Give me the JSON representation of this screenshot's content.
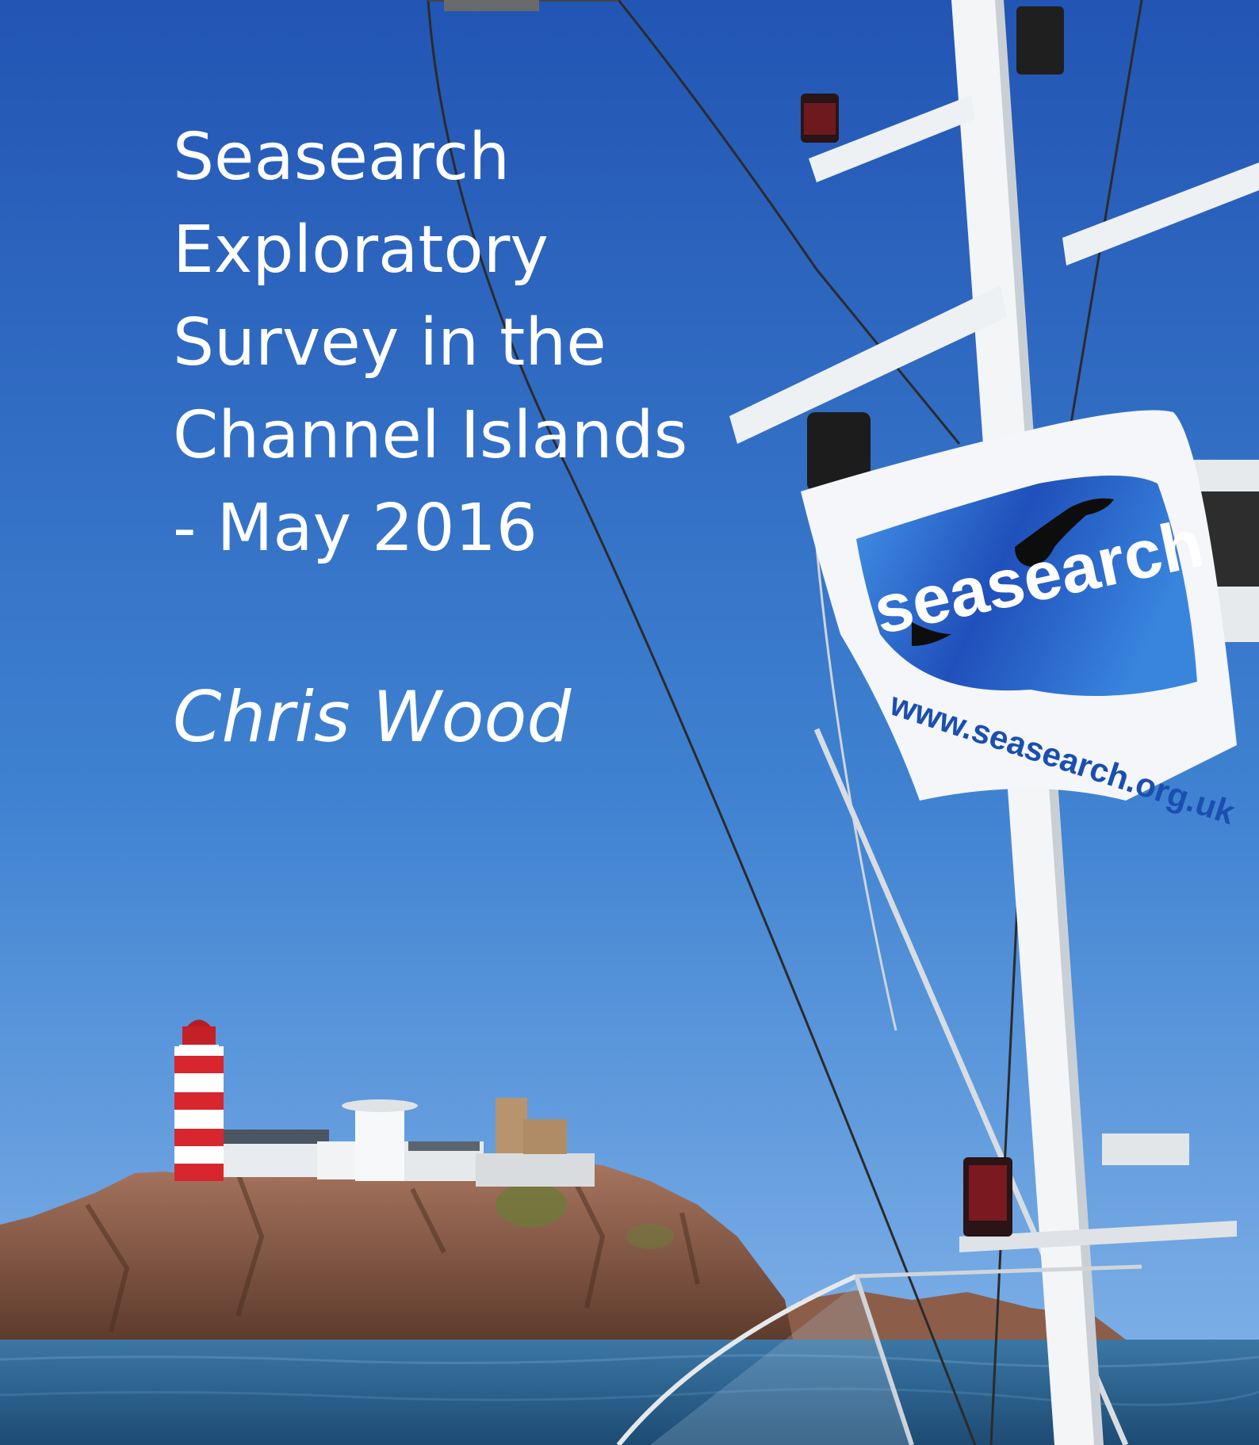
{
  "cover": {
    "title_lines": [
      "Seasearch",
      "Exploratory",
      "Survey in the",
      "Channel Islands",
      "- May 2016"
    ],
    "author": "Chris Wood"
  },
  "flag": {
    "logo_text": "seasearch",
    "url_text": "www.seasearch.org.uk"
  },
  "colors": {
    "sky_top": "#2255b4",
    "sky_bottom": "#7fb0e6",
    "sea": "#2a5e88",
    "lighthouse_red": "#d8262e",
    "rock": "#8a5a42"
  }
}
